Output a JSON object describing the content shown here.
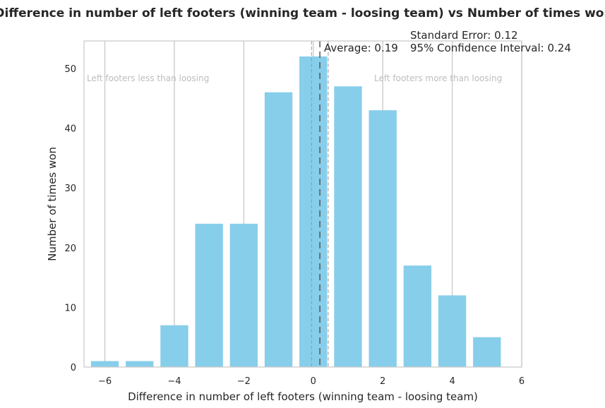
{
  "chart_data": {
    "type": "bar",
    "title": "Difference in number of left footers (winning team - loosing team) vs Number of times won",
    "xlabel": "Difference in number of left footers (winning team - loosing team)",
    "ylabel": "Number of times won",
    "x": [
      -6,
      -5,
      -4,
      -3,
      -2,
      -1,
      0,
      1,
      2,
      3,
      4,
      5
    ],
    "values": [
      1,
      1,
      7,
      24,
      24,
      46,
      52,
      47,
      43,
      17,
      12,
      5
    ],
    "bar_color": "#87ceeb",
    "xlim": [
      -6.6,
      6
    ],
    "ylim": [
      0,
      54.6
    ],
    "xticks": [
      -6,
      -4,
      -2,
      0,
      2,
      4,
      6
    ],
    "xtick_labels": [
      "−6",
      "−4",
      "−2",
      "0",
      "2",
      "4",
      "6"
    ],
    "yticks": [
      0,
      10,
      20,
      30,
      40,
      50
    ],
    "grid": "vertical",
    "average": 0.19,
    "ci_half_width": 0.24,
    "annotations": {
      "average": "Average: 0.19",
      "standard_error": "Standard Error: 0.12",
      "confidence_interval": "95% Confidence Interval: 0.24",
      "left_note": "Left footers less than loosing",
      "right_note": "Left footers more than loosing"
    }
  }
}
